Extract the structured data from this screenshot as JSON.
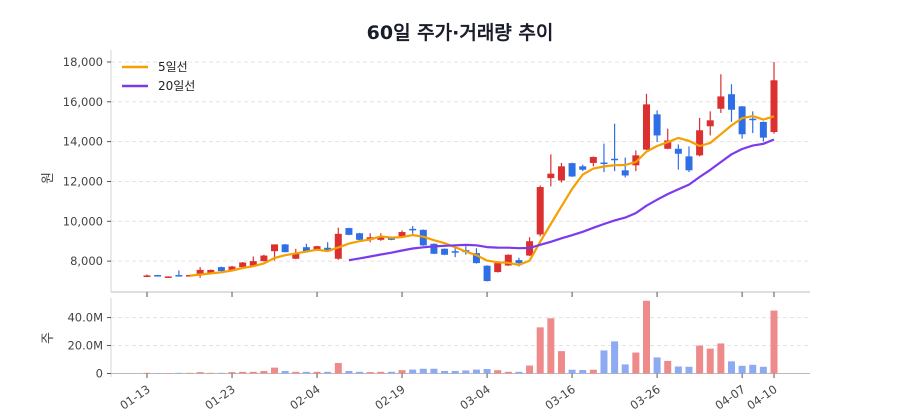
{
  "chart_data": {
    "title": "60일 주가·거래량 추이",
    "type": "candlestick+bar",
    "colors": {
      "up": "#dc2f2f",
      "down": "#2f6fe6",
      "up_volume": "#ee8a8a",
      "down_volume": "#8eaaf2",
      "ma5": "#f59f00",
      "ma20": "#7c3aed",
      "grid": "#e3e3e3"
    },
    "price_axis": {
      "ylabel": "원",
      "ylim": [
        6450,
        18600
      ],
      "ticks": [
        8000,
        10000,
        12000,
        14000,
        16000,
        18000
      ],
      "tick_labels": [
        "8,000",
        "10,000",
        "12,000",
        "14,000",
        "16,000",
        "18,000"
      ],
      "grid": true
    },
    "volume_axis": {
      "ylabel": "주",
      "ylim": [
        0,
        54000000
      ],
      "ticks": [
        0,
        20000000,
        40000000
      ],
      "tick_labels": [
        "0",
        "20.0M",
        "40.0M"
      ],
      "grid": true
    },
    "x_ticks": [
      {
        "index": 0,
        "label": "01-13"
      },
      {
        "index": 8,
        "label": "01-23"
      },
      {
        "index": 16,
        "label": "02-04"
      },
      {
        "index": 24,
        "label": "02-19"
      },
      {
        "index": 32,
        "label": "03-04"
      },
      {
        "index": 40,
        "label": "03-16"
      },
      {
        "index": 48,
        "label": "03-26"
      },
      {
        "index": 56,
        "label": "04-07"
      },
      {
        "index": 59,
        "label": "04-10"
      }
    ],
    "legend": {
      "placement": "top-left",
      "entries": [
        "5일선",
        "20일선"
      ]
    },
    "ohlc": [
      [
        7260,
        7330,
        7200,
        7280
      ],
      [
        7300,
        7310,
        7260,
        7270
      ],
      [
        7200,
        7240,
        7180,
        7230
      ],
      [
        7300,
        7530,
        7250,
        7270
      ],
      [
        7230,
        7310,
        7220,
        7300
      ],
      [
        7360,
        7700,
        7160,
        7560
      ],
      [
        7400,
        7580,
        7380,
        7560
      ],
      [
        7700,
        7720,
        7480,
        7500
      ],
      [
        7560,
        7760,
        7540,
        7730
      ],
      [
        7700,
        7960,
        7680,
        7930
      ],
      [
        7780,
        8230,
        7760,
        8000
      ],
      [
        8000,
        8320,
        7980,
        8280
      ],
      [
        8500,
        8840,
        8030,
        8840
      ],
      [
        8840,
        8860,
        8440,
        8450
      ],
      [
        8120,
        8620,
        8100,
        8370
      ],
      [
        8700,
        8870,
        8440,
        8450
      ],
      [
        8530,
        8770,
        8510,
        8750
      ],
      [
        8670,
        8950,
        8480,
        8500
      ],
      [
        8120,
        9680,
        8070,
        9370
      ],
      [
        9660,
        9680,
        9300,
        9320
      ],
      [
        9400,
        9420,
        9050,
        9070
      ],
      [
        9070,
        9400,
        8950,
        9200
      ],
      [
        9070,
        9400,
        9020,
        9240
      ],
      [
        9200,
        9230,
        9050,
        9070
      ],
      [
        9240,
        9540,
        9220,
        9460
      ],
      [
        9620,
        9760,
        9370,
        9570
      ],
      [
        9570,
        9590,
        8770,
        8790
      ],
      [
        8870,
        8890,
        8350,
        8370
      ],
      [
        8620,
        8640,
        8300,
        8320
      ],
      [
        8500,
        8700,
        8200,
        8450
      ],
      [
        8550,
        8740,
        8330,
        8450
      ],
      [
        8400,
        8650,
        7880,
        7900
      ],
      [
        7770,
        7790,
        6980,
        7000
      ],
      [
        7450,
        8000,
        7430,
        7900
      ],
      [
        7780,
        8340,
        7760,
        8320
      ],
      [
        8050,
        8170,
        7730,
        7900
      ],
      [
        8280,
        9200,
        8260,
        9000
      ],
      [
        9340,
        11800,
        9240,
        11720
      ],
      [
        12170,
        13360,
        11750,
        12390
      ],
      [
        12050,
        12930,
        11950,
        12760
      ],
      [
        12920,
        12940,
        12230,
        12250
      ],
      [
        12760,
        12840,
        12520,
        12590
      ],
      [
        12930,
        13250,
        12760,
        13230
      ],
      [
        12950,
        13900,
        12470,
        12920
      ],
      [
        13140,
        14900,
        12520,
        13100
      ],
      [
        12560,
        13200,
        12200,
        12300
      ],
      [
        12810,
        13560,
        12520,
        13310
      ],
      [
        13600,
        16400,
        13580,
        15870
      ],
      [
        15370,
        15570,
        13980,
        14310
      ],
      [
        13640,
        14650,
        13620,
        14060
      ],
      [
        13640,
        13860,
        12590,
        13390
      ],
      [
        13260,
        13760,
        12470,
        12560
      ],
      [
        13310,
        15190,
        13260,
        14570
      ],
      [
        14770,
        15520,
        14310,
        15070
      ],
      [
        15650,
        17380,
        15440,
        16270
      ],
      [
        16380,
        16880,
        14990,
        15600
      ],
      [
        15770,
        15790,
        14150,
        14370
      ],
      [
        15150,
        15520,
        14430,
        15100
      ],
      [
        14990,
        15010,
        14010,
        14200
      ],
      [
        14480,
        18000,
        14400,
        17080
      ]
    ],
    "volume": [
      500000,
      200000,
      200000,
      500000,
      500000,
      1000000,
      500000,
      500000,
      1000000,
      1200000,
      1200000,
      1800000,
      4200000,
      1800000,
      1200000,
      1200000,
      1200000,
      1200000,
      7500000,
      1800000,
      1200000,
      1000000,
      1200000,
      1200000,
      2400000,
      2800000,
      3400000,
      3400000,
      1800000,
      1800000,
      2200000,
      2800000,
      3200000,
      2400000,
      1200000,
      1200000,
      5700000,
      33000000,
      39500000,
      16000000,
      2700000,
      2500000,
      2700000,
      16500000,
      23000000,
      6500000,
      15000000,
      52000000,
      11500000,
      9000000,
      5000000,
      4800000,
      20000000,
      17800000,
      21500000,
      8700000,
      5500000,
      6200000,
      4800000,
      45000000
    ]
  }
}
